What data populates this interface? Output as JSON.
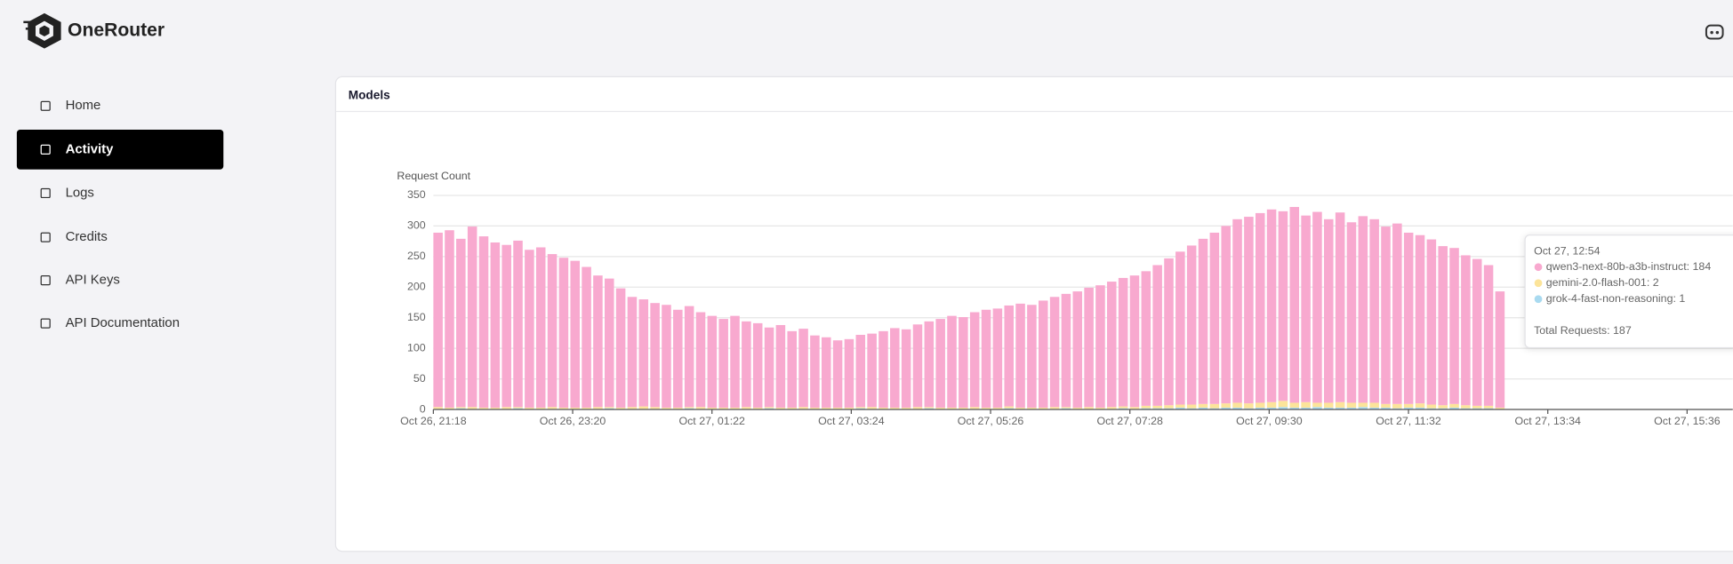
{
  "brand": "OneRouter",
  "nav": [
    {
      "label": "Home",
      "active": false
    },
    {
      "label": "Activity",
      "active": true
    },
    {
      "label": "Logs",
      "active": false
    },
    {
      "label": "Credits",
      "active": false
    },
    {
      "label": "API Keys",
      "active": false
    },
    {
      "label": "API Documentation",
      "active": false
    }
  ],
  "card_title": "Models",
  "chart_data": {
    "type": "stacked_bar",
    "y_label": "Request Count",
    "x": [
      0,
      10,
      20,
      30,
      40,
      50,
      60,
      70,
      80,
      90,
      100,
      110,
      120,
      130,
      140,
      150,
      160,
      170,
      180,
      190,
      200,
      210,
      220,
      230,
      240,
      250,
      260,
      270,
      280,
      290,
      300,
      310,
      320,
      330,
      340,
      350,
      360,
      370,
      380,
      390,
      400,
      410,
      420,
      430,
      440,
      450,
      460,
      470,
      480,
      490,
      500,
      510,
      520,
      530,
      540,
      550,
      560,
      570,
      580,
      590,
      600,
      610,
      620,
      630,
      640,
      650,
      660,
      670,
      680,
      690,
      700,
      710,
      720,
      730,
      740,
      750,
      760,
      770,
      780,
      790,
      800,
      810,
      820,
      830,
      840,
      850,
      860,
      870,
      880,
      890,
      900,
      910,
      920,
      930
    ],
    "xlim": [
      0,
      1138
    ],
    "xticks": [
      {
        "value": 0,
        "label": "Oct 26, 21:18"
      },
      {
        "value": 122,
        "label": "Oct 26, 23:20"
      },
      {
        "value": 244,
        "label": "Oct 27, 01:22"
      },
      {
        "value": 366,
        "label": "Oct 27, 03:24"
      },
      {
        "value": 488,
        "label": "Oct 27, 05:26"
      },
      {
        "value": 610,
        "label": "Oct 27, 07:28"
      },
      {
        "value": 732,
        "label": "Oct 27, 09:30"
      },
      {
        "value": 854,
        "label": "Oct 27, 11:32"
      },
      {
        "value": 976,
        "label": "Oct 27, 13:34"
      },
      {
        "value": 1098,
        "label": "Oct 27, 15:36"
      }
    ],
    "ylim": [
      0,
      350
    ],
    "yticks": [
      0,
      50,
      100,
      150,
      200,
      250,
      300,
      350
    ],
    "grid": true,
    "series": [
      {
        "name": "qwen3-next-80b-a3b-instruct",
        "color": "#f8a9cf",
        "values": [
          285,
          290,
          275,
          295,
          280,
          270,
          265,
          272,
          258,
          262,
          250,
          245,
          240,
          230,
          215,
          210,
          195,
          180,
          175,
          170,
          168,
          160,
          165,
          155,
          150,
          145,
          150,
          140,
          138,
          130,
          135,
          125,
          128,
          118,
          115,
          110,
          112,
          118,
          120,
          125,
          130,
          128,
          135,
          140,
          145,
          150,
          148,
          155,
          160,
          162,
          165,
          170,
          168,
          175,
          180,
          185,
          190,
          195,
          200,
          205,
          210,
          215,
          220,
          230,
          240,
          250,
          260,
          270,
          280,
          290,
          300,
          305,
          310,
          315,
          310,
          320,
          305,
          312,
          300,
          310,
          295,
          305,
          300,
          290,
          295,
          280,
          275,
          270,
          260,
          255,
          245,
          240,
          230,
          190
        ]
      },
      {
        "name": "gemini-2.0-flash-001",
        "color": "#fce49a",
        "values": [
          3,
          2,
          2,
          3,
          2,
          2,
          3,
          2,
          2,
          2,
          3,
          2,
          2,
          2,
          3,
          2,
          2,
          3,
          4,
          3,
          2,
          2,
          2,
          3,
          2,
          2,
          2,
          3,
          2,
          2,
          2,
          2,
          3,
          2,
          2,
          2,
          2,
          2,
          3,
          2,
          2,
          2,
          3,
          2,
          2,
          2,
          2,
          3,
          2,
          2,
          3,
          2,
          2,
          2,
          3,
          2,
          2,
          3,
          2,
          3,
          3,
          3,
          4,
          4,
          5,
          5,
          6,
          6,
          7,
          7,
          8,
          8,
          8,
          9,
          10,
          8,
          9,
          7,
          8,
          9,
          8,
          7,
          8,
          6,
          7,
          6,
          7,
          6,
          5,
          6,
          5,
          4,
          4,
          2
        ]
      },
      {
        "name": "grok-4-fast-non-reasoning",
        "color": "#a9daf0",
        "values": [
          1,
          1,
          2,
          1,
          1,
          1,
          1,
          2,
          1,
          1,
          1,
          1,
          1,
          1,
          1,
          2,
          1,
          1,
          1,
          1,
          1,
          1,
          2,
          1,
          1,
          1,
          1,
          1,
          1,
          2,
          1,
          1,
          1,
          1,
          1,
          1,
          1,
          2,
          1,
          1,
          1,
          1,
          1,
          2,
          1,
          1,
          1,
          1,
          1,
          1,
          2,
          1,
          1,
          1,
          1,
          2,
          1,
          1,
          1,
          1,
          2,
          1,
          2,
          2,
          2,
          3,
          2,
          3,
          2,
          3,
          3,
          2,
          3,
          3,
          4,
          3,
          3,
          4,
          3,
          3,
          3,
          4,
          3,
          3,
          2,
          3,
          3,
          2,
          2,
          3,
          2,
          2,
          2,
          1
        ]
      }
    ]
  },
  "tooltip": {
    "title": "Oct 27, 12:54",
    "items": [
      "qwen3-next-80b-a3b-instruct: 184",
      "gemini-2.0-flash-001: 2",
      "grok-4-fast-non-reasoning: 1"
    ],
    "total": "Total Requests: 187"
  }
}
